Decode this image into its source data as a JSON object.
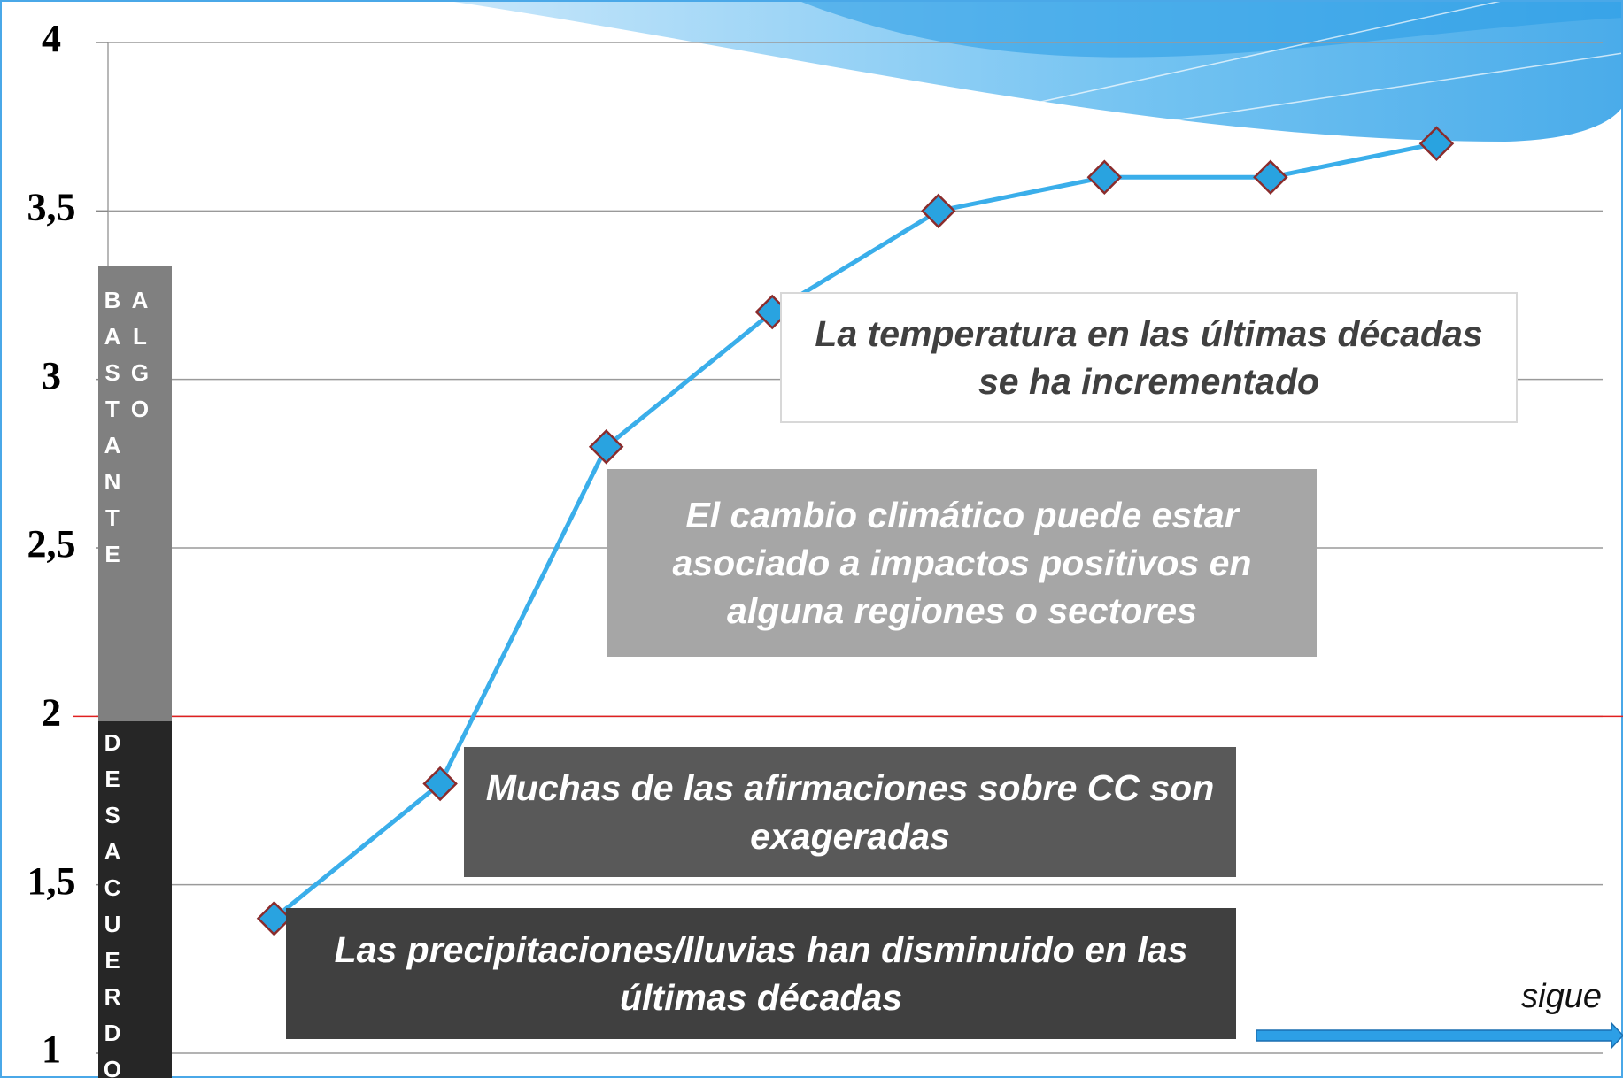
{
  "chart_data": {
    "type": "line",
    "categories": [
      null,
      null,
      null,
      null,
      null,
      null,
      null,
      null
    ],
    "values": [
      1.4,
      1.8,
      2.8,
      3.2,
      3.5,
      3.6,
      3.6,
      3.7
    ],
    "color": "#3aaeea",
    "marker_color": "#29a3e0",
    "ylim": [
      1,
      4
    ],
    "yticks": [
      1,
      {
        "value": 1.5,
        "label": "1,5"
      },
      2,
      {
        "value": 2.5,
        "label": "2,5"
      },
      3,
      {
        "value": 3.5,
        "label": "3,5"
      },
      4
    ],
    "grid": true,
    "reference_line": {
      "value": 2,
      "color": "#e02020"
    },
    "side_labels": [
      "BASTANTE ALGO",
      "DESACUERDO"
    ],
    "annotations": [
      "La temperatura en las últimas décadas se ha incrementado",
      "El cambio climático puede estar asociado a impactos positivos en alguna regiones o sectores",
      "Muchas de las afirmaciones sobre CC son exageradas",
      "Las precipitaciones/lluvias han disminuido en las últimas décadas"
    ],
    "next_label": "sigue"
  }
}
